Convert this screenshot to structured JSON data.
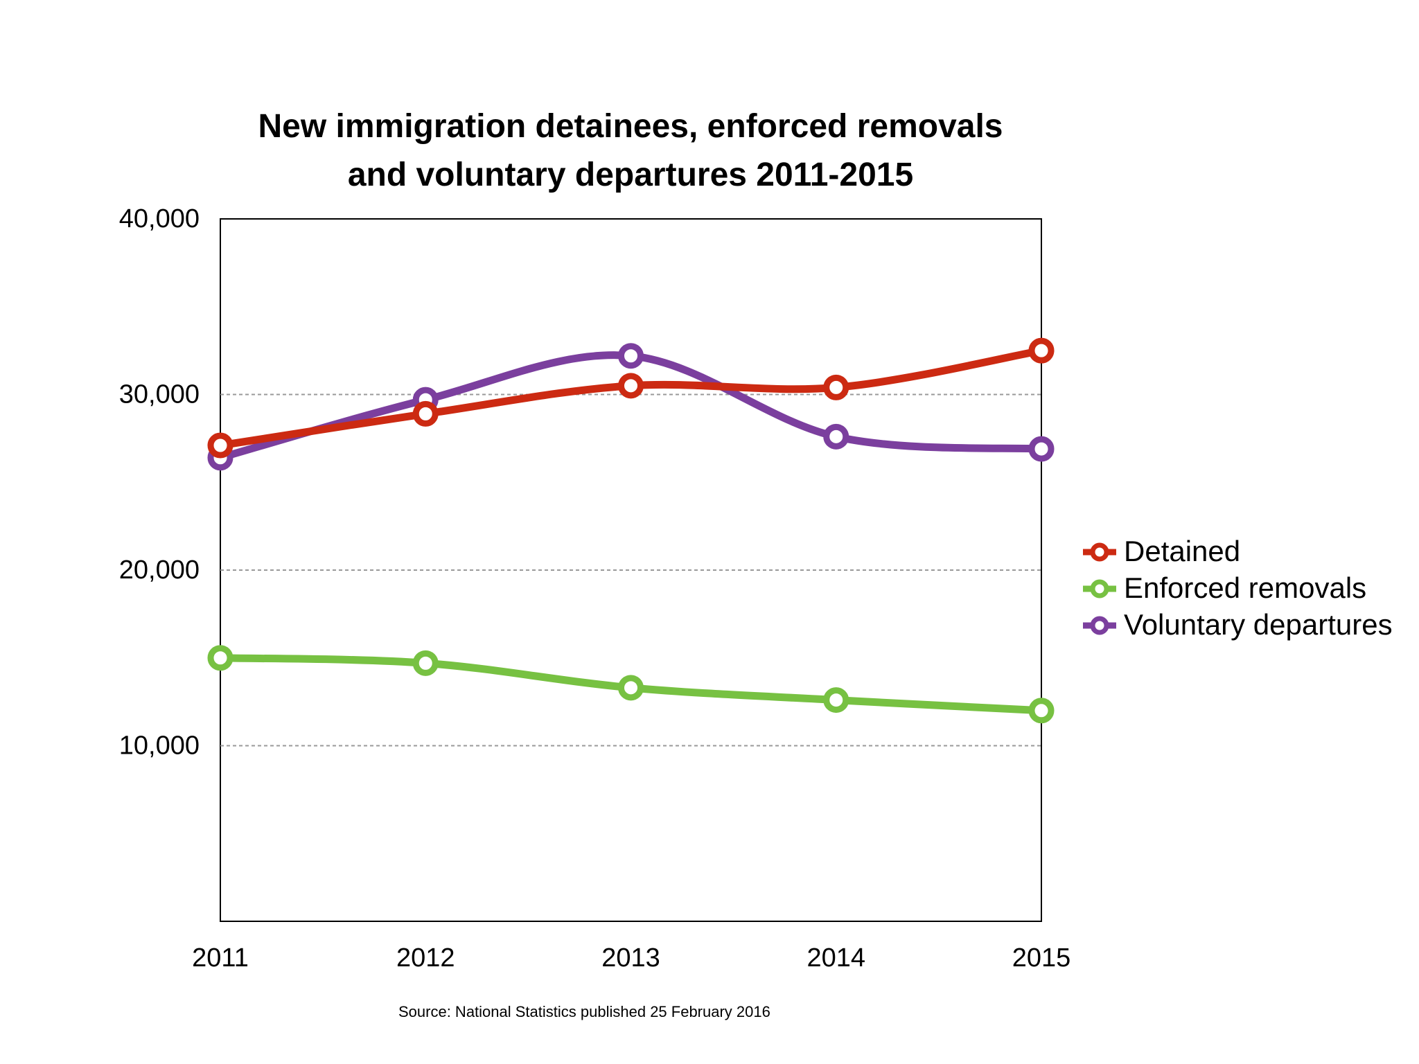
{
  "chart_data": {
    "type": "line",
    "title_lines": [
      "New immigration detainees, enforced removals",
      "and voluntary departures 2011-2015"
    ],
    "categories": [
      "2011",
      "2012",
      "2013",
      "2014",
      "2015"
    ],
    "y_ticks": [
      "40,000",
      "30,000",
      "20,000",
      "10,000"
    ],
    "ylim": [
      0,
      40000
    ],
    "grid": "dashed horizontal at 10,000 / 20,000 / 30,000",
    "series": [
      {
        "name": "Detained",
        "color": "#cc2a12",
        "values": [
          27100,
          28900,
          30500,
          30400,
          32500
        ]
      },
      {
        "name": "Enforced removals",
        "color": "#77c142",
        "values": [
          15000,
          14700,
          13300,
          12600,
          12000
        ]
      },
      {
        "name": "Voluntary departures",
        "color": "#7b3f9e",
        "values": [
          26400,
          29700,
          32200,
          27600,
          26900
        ]
      }
    ],
    "legend_position": "right",
    "source": "Source: National Statistics published 25 February 2016"
  }
}
